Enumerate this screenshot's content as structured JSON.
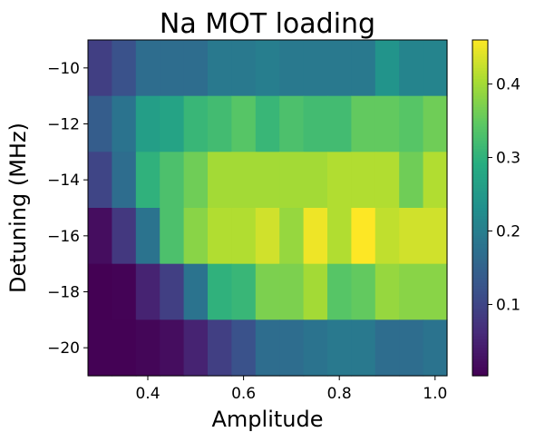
{
  "chart_data": {
    "type": "heatmap",
    "title": "Na MOT loading",
    "xlabel": "Amplitude",
    "ylabel": "Detuning (MHz)",
    "x_centers": [
      0.3,
      0.35,
      0.4,
      0.45,
      0.5,
      0.55,
      0.6,
      0.65,
      0.7,
      0.75,
      0.8,
      0.85,
      0.9,
      0.95,
      1.0
    ],
    "y_centers": [
      -10,
      -12,
      -14,
      -16,
      -18,
      -20
    ],
    "xlim": [
      0.275,
      1.025
    ],
    "ylim": [
      -21,
      -9
    ],
    "xticks": [
      0.4,
      0.6,
      0.8,
      1.0
    ],
    "xtick_labels": [
      "0.4",
      "0.6",
      "0.8",
      "1.0"
    ],
    "yticks": [
      -10,
      -12,
      -14,
      -16,
      -18,
      -20
    ],
    "ytick_labels": [
      "−10",
      "−12",
      "−14",
      "−16",
      "−18",
      "−20"
    ],
    "values": [
      [
        0.09,
        0.12,
        0.17,
        0.17,
        0.17,
        0.19,
        0.19,
        0.2,
        0.19,
        0.19,
        0.19,
        0.19,
        0.24,
        0.21,
        0.21
      ],
      [
        0.14,
        0.18,
        0.26,
        0.27,
        0.31,
        0.32,
        0.34,
        0.31,
        0.33,
        0.32,
        0.32,
        0.35,
        0.35,
        0.34,
        0.36
      ],
      [
        0.1,
        0.17,
        0.3,
        0.33,
        0.36,
        0.4,
        0.4,
        0.4,
        0.4,
        0.4,
        0.41,
        0.41,
        0.41,
        0.36,
        0.41
      ],
      [
        0.02,
        0.08,
        0.18,
        0.33,
        0.38,
        0.41,
        0.41,
        0.43,
        0.39,
        0.45,
        0.41,
        0.46,
        0.42,
        0.43,
        0.43
      ],
      [
        0.003,
        0.006,
        0.05,
        0.09,
        0.18,
        0.3,
        0.31,
        0.37,
        0.37,
        0.4,
        0.34,
        0.35,
        0.39,
        0.38,
        0.38
      ],
      [
        0.004,
        0.005,
        0.01,
        0.02,
        0.05,
        0.09,
        0.12,
        0.17,
        0.17,
        0.18,
        0.19,
        0.19,
        0.17,
        0.17,
        0.18
      ]
    ],
    "colormap": "viridis",
    "vmin": 0.003,
    "vmax": 0.46,
    "colorbar_ticks": [
      0.1,
      0.2,
      0.3,
      0.4
    ],
    "colorbar_tick_labels": [
      "0.1",
      "0.2",
      "0.3",
      "0.4"
    ],
    "grid": false
  }
}
